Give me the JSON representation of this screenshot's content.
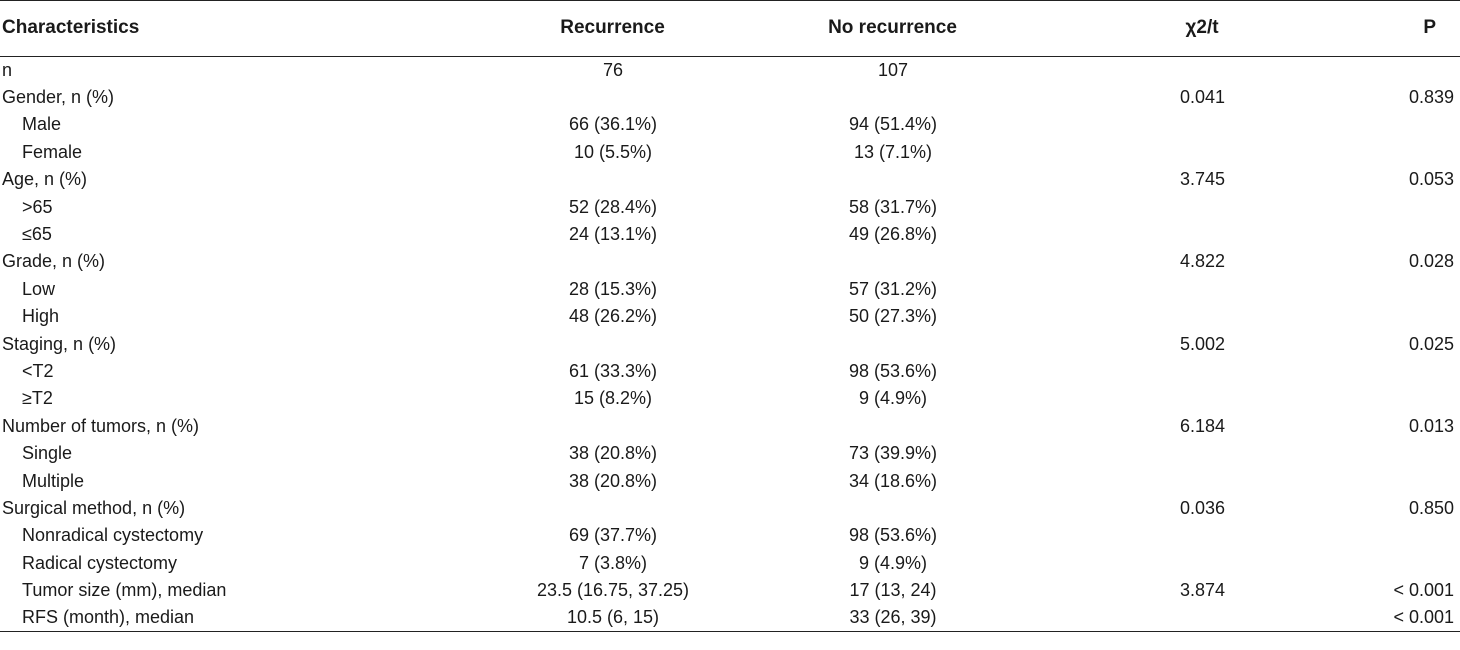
{
  "table": {
    "headers": [
      "Characteristics",
      "Recurrence",
      "No recurrence",
      "χ2/t",
      "P"
    ],
    "rows": [
      {
        "label": "n",
        "indent": false,
        "recurrence": "76",
        "no_recurrence": "107",
        "stat": "",
        "p": ""
      },
      {
        "label": "Gender, n (%)",
        "indent": false,
        "recurrence": "",
        "no_recurrence": "",
        "stat": "0.041",
        "p": "0.839"
      },
      {
        "label": "Male",
        "indent": true,
        "recurrence": "66 (36.1%)",
        "no_recurrence": "94 (51.4%)",
        "stat": "",
        "p": ""
      },
      {
        "label": "Female",
        "indent": true,
        "recurrence": "10 (5.5%)",
        "no_recurrence": "13 (7.1%)",
        "stat": "",
        "p": ""
      },
      {
        "label": "Age, n (%)",
        "indent": false,
        "recurrence": "",
        "no_recurrence": "",
        "stat": "3.745",
        "p": "0.053"
      },
      {
        "label": ">65",
        "indent": true,
        "recurrence": "52 (28.4%)",
        "no_recurrence": "58 (31.7%)",
        "stat": "",
        "p": ""
      },
      {
        "label": "≤65",
        "indent": true,
        "recurrence": "24 (13.1%)",
        "no_recurrence": "49 (26.8%)",
        "stat": "",
        "p": ""
      },
      {
        "label": "Grade, n (%)",
        "indent": false,
        "recurrence": "",
        "no_recurrence": "",
        "stat": "4.822",
        "p": "0.028"
      },
      {
        "label": "Low",
        "indent": true,
        "recurrence": "28 (15.3%)",
        "no_recurrence": "57 (31.2%)",
        "stat": "",
        "p": ""
      },
      {
        "label": "High",
        "indent": true,
        "recurrence": "48 (26.2%)",
        "no_recurrence": "50 (27.3%)",
        "stat": "",
        "p": ""
      },
      {
        "label": "Staging, n (%)",
        "indent": false,
        "recurrence": "",
        "no_recurrence": "",
        "stat": "5.002",
        "p": "0.025"
      },
      {
        "label": "<T2",
        "indent": true,
        "recurrence": "61 (33.3%)",
        "no_recurrence": "98 (53.6%)",
        "stat": "",
        "p": ""
      },
      {
        "label": "≥T2",
        "indent": true,
        "recurrence": "15 (8.2%)",
        "no_recurrence": "9 (4.9%)",
        "stat": "",
        "p": ""
      },
      {
        "label": "Number of tumors, n (%)",
        "indent": false,
        "recurrence": "",
        "no_recurrence": "",
        "stat": "6.184",
        "p": "0.013"
      },
      {
        "label": "Single",
        "indent": true,
        "recurrence": "38 (20.8%)",
        "no_recurrence": "73 (39.9%)",
        "stat": "",
        "p": ""
      },
      {
        "label": "Multiple",
        "indent": true,
        "recurrence": "38 (20.8%)",
        "no_recurrence": "34 (18.6%)",
        "stat": "",
        "p": ""
      },
      {
        "label": "Surgical method, n (%)",
        "indent": false,
        "recurrence": "",
        "no_recurrence": "",
        "stat": "0.036",
        "p": "0.850"
      },
      {
        "label": "Nonradical cystectomy",
        "indent": true,
        "recurrence": "69 (37.7%)",
        "no_recurrence": "98 (53.6%)",
        "stat": "",
        "p": ""
      },
      {
        "label": "Radical cystectomy",
        "indent": true,
        "recurrence": "7 (3.8%)",
        "no_recurrence": "9 (4.9%)",
        "stat": "",
        "p": ""
      },
      {
        "label": "Tumor size (mm), median",
        "indent": true,
        "recurrence": "23.5 (16.75, 37.25)",
        "no_recurrence": "17 (13, 24)",
        "stat": "3.874",
        "p": "< 0.001"
      },
      {
        "label": "RFS (month), median",
        "indent": true,
        "recurrence": "10.5 (6, 15)",
        "no_recurrence": "33 (26, 39)",
        "stat": "",
        "p": "< 0.001"
      }
    ]
  }
}
